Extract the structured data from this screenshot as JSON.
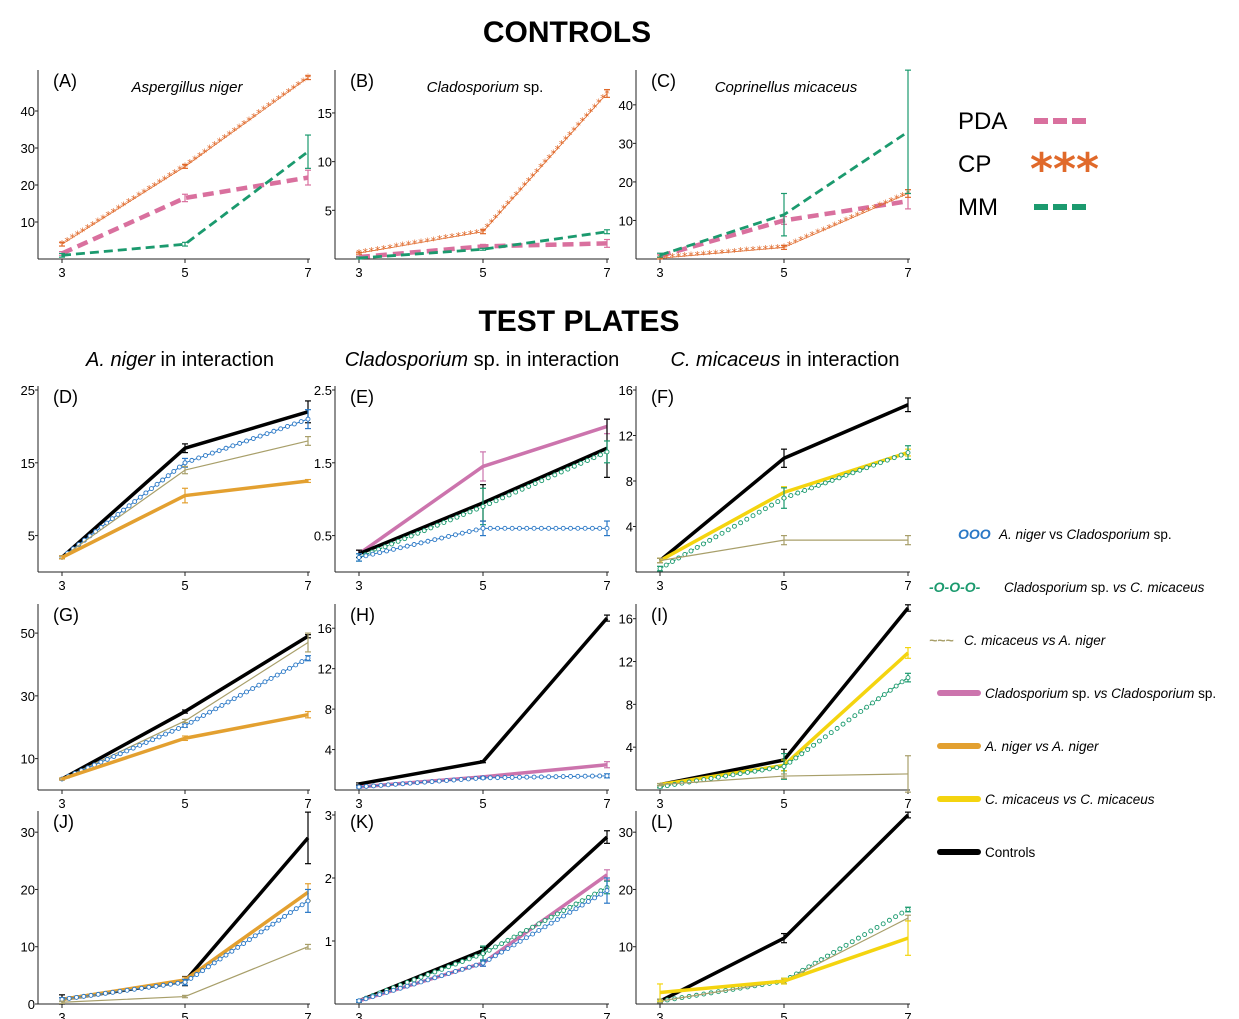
{
  "headings": {
    "controls": "CONTROLS",
    "test_plates": "TEST PLATES"
  },
  "column_heads": [
    {
      "italic": "A. niger",
      "rest": " in interaction"
    },
    {
      "italic": "Cladosporium",
      "rest": " sp. in interaction"
    },
    {
      "italic": "C. micaceus",
      "rest": " in interaction"
    }
  ],
  "legend_controls": [
    {
      "label": "PDA",
      "color": "#d9709e",
      "style": "dashed",
      "swatch": "pda-dash-icon"
    },
    {
      "label": "CP",
      "color": "#e0692a",
      "style": "asterisks",
      "swatch": "asterisk-icon"
    },
    {
      "label": "MM",
      "color": "#1b9a6e",
      "style": "dashed",
      "swatch": "mm-dash-icon"
    }
  ],
  "legend_tests": [
    {
      "key": "nc",
      "parts": [
        {
          "t": "A. niger",
          "i": true
        },
        {
          "t": " vs ",
          "i": false
        },
        {
          "t": "Cladosporium",
          "i": true
        },
        {
          "t": " sp.",
          "i": false
        }
      ],
      "color": "#2a78c6",
      "style": "circles",
      "swatch_text": "OOO",
      "swatch": "blue-circles-icon"
    },
    {
      "key": "cm",
      "parts": [
        {
          "t": "Cladosporium",
          "i": true
        },
        {
          "t": " sp. ",
          "i": false
        },
        {
          "t": "vs C. micaceus",
          "i": true
        }
      ],
      "color": "#1b9a6e",
      "style": "dash-circles",
      "swatch_text": "-O-O-O-",
      "swatch": "green-dash-circle-icon"
    },
    {
      "key": "ma",
      "parts": [
        {
          "t": "C. micaceus vs A. niger",
          "i": true
        }
      ],
      "color": "#a89f6a",
      "style": "waves",
      "swatch_text": "~~~",
      "swatch": "olive-wave-icon"
    },
    {
      "key": "cc",
      "parts": [
        {
          "t": "Cladosporium",
          "i": true
        },
        {
          "t": " sp. ",
          "i": false
        },
        {
          "t": "vs Cladosporium",
          "i": true
        },
        {
          "t": " sp.",
          "i": false
        }
      ],
      "color": "#cc74ad",
      "style": "solid",
      "swatch": "pink-line-icon"
    },
    {
      "key": "nn",
      "parts": [
        {
          "t": "A. niger vs A. niger",
          "i": true
        }
      ],
      "color": "#e3a030",
      "style": "solid",
      "swatch": "orange-line-icon"
    },
    {
      "key": "mm2",
      "parts": [
        {
          "t": "C. micaceus vs C. micaceus",
          "i": true
        }
      ],
      "color": "#f4d40f",
      "style": "solid",
      "swatch": "yellow-line-icon"
    },
    {
      "key": "ctl",
      "parts": [
        {
          "t": "Controls",
          "i": false
        }
      ],
      "color": "#000000",
      "style": "solid",
      "swatch": "black-line-icon"
    }
  ],
  "chart_data": [
    {
      "label": "(A)",
      "title": "Aspergillus niger",
      "type": "line",
      "x": [
        3,
        5,
        7
      ],
      "ylim": [
        0,
        50
      ],
      "yticks": [
        10,
        20,
        30,
        40
      ],
      "series": [
        {
          "name": "PDA",
          "values": [
            1.5,
            16.5,
            22
          ],
          "err": [
            0.5,
            1,
            2
          ]
        },
        {
          "name": "CP",
          "values": [
            4,
            25,
            49
          ],
          "err": [
            0.5,
            0.5,
            0.5
          ]
        },
        {
          "name": "MM",
          "values": [
            1,
            4,
            29
          ],
          "err": [
            0.5,
            0.5,
            4.5
          ]
        }
      ]
    },
    {
      "label": "(B)",
      "title": "Cladosporium sp.",
      "title_parts": [
        {
          "t": "Cladosporium",
          "i": true
        },
        {
          "t": " sp.",
          "i": false
        }
      ],
      "type": "line",
      "x": [
        3,
        5,
        7
      ],
      "ylim": [
        0,
        19
      ],
      "yticks": [
        5,
        10,
        15
      ],
      "series": [
        {
          "name": "PDA",
          "values": [
            0.2,
            1.3,
            1.6
          ],
          "err": [
            0.1,
            0.2,
            0.4
          ]
        },
        {
          "name": "CP",
          "values": [
            0.6,
            2.8,
            17
          ],
          "err": [
            0.1,
            0.2,
            0.4
          ]
        },
        {
          "name": "MM",
          "values": [
            0.1,
            1.0,
            2.8
          ],
          "err": [
            0.1,
            0.1,
            0.2
          ]
        }
      ]
    },
    {
      "label": "(C)",
      "title": "Coprinellus micaceus",
      "type": "line",
      "x": [
        3,
        5,
        7
      ],
      "ylim": [
        0,
        48
      ],
      "yticks": [
        10,
        20,
        30,
        40
      ],
      "series": [
        {
          "name": "PDA",
          "values": [
            0.8,
            10,
            15
          ],
          "err": [
            0.3,
            1,
            2
          ]
        },
        {
          "name": "CP",
          "values": [
            0.2,
            3,
            17
          ],
          "err": [
            0.2,
            0.5,
            1
          ]
        },
        {
          "name": "MM",
          "values": [
            1,
            11.5,
            33
          ],
          "err": [
            0.5,
            5.5,
            16
          ]
        }
      ]
    },
    {
      "label": "(D)",
      "type": "line",
      "x": [
        3,
        5,
        7
      ],
      "ylim": [
        0,
        25
      ],
      "yticks": [
        5,
        15,
        25
      ],
      "series": [
        {
          "name": "Controls",
          "values": [
            2,
            17,
            22
          ],
          "err": [
            0.2,
            0.6,
            1.5
          ]
        },
        {
          "name": "A. niger vs Cladosporium sp.",
          "values": [
            2,
            15,
            21
          ],
          "err": [
            0.2,
            0.6,
            1.3
          ]
        },
        {
          "name": "C. micaceus vs A. niger",
          "values": [
            2,
            14,
            18
          ],
          "err": [
            0.2,
            0.5,
            0.6
          ]
        },
        {
          "name": "A. niger vs A. niger",
          "values": [
            2,
            10.5,
            12.5
          ],
          "err": [
            0.2,
            1,
            0.2
          ]
        }
      ]
    },
    {
      "label": "(E)",
      "type": "line",
      "x": [
        3,
        5,
        7
      ],
      "ylim": [
        0,
        2.5
      ],
      "yticks": [
        0.5,
        1.5,
        2.5
      ],
      "series": [
        {
          "name": "Cladosporium sp. vs Cladosporium sp.",
          "values": [
            0.25,
            1.45,
            2.0
          ],
          "err": [
            0.05,
            0.2,
            0.1
          ]
        },
        {
          "name": "Controls",
          "values": [
            0.25,
            0.95,
            1.7
          ],
          "err": [
            0.05,
            0.25,
            0.4
          ]
        },
        {
          "name": "Cladosporium sp. vs C. micaceus",
          "values": [
            0.2,
            0.9,
            1.65
          ],
          "err": [
            0.05,
            0.25,
            0.15
          ]
        },
        {
          "name": "A. niger vs Cladosporium sp.",
          "values": [
            0.2,
            0.6,
            0.6
          ],
          "err": [
            0.05,
            0.1,
            0.1
          ]
        }
      ]
    },
    {
      "label": "(F)",
      "type": "line",
      "x": [
        3,
        5,
        7
      ],
      "ylim": [
        0,
        16
      ],
      "yticks": [
        4,
        8,
        12,
        16
      ],
      "series": [
        {
          "name": "Controls",
          "values": [
            1,
            10,
            14.7
          ],
          "err": [
            0.2,
            0.8,
            0.6
          ]
        },
        {
          "name": "C. micaceus vs C. micaceus",
          "values": [
            1,
            7,
            10.5
          ],
          "err": [
            0.2,
            0.5,
            0.3
          ]
        },
        {
          "name": "Cladosporium sp. vs C. micaceus",
          "values": [
            0.3,
            6.5,
            10.5
          ],
          "err": [
            0.2,
            0.9,
            0.6
          ]
        },
        {
          "name": "C. micaceus vs A. niger",
          "values": [
            1,
            2.8,
            2.8
          ],
          "err": [
            0.2,
            0.4,
            0.4
          ]
        }
      ]
    },
    {
      "label": "(G)",
      "type": "line",
      "x": [
        3,
        5,
        7
      ],
      "ylim": [
        0,
        58
      ],
      "yticks": [
        10,
        30,
        50
      ],
      "series": [
        {
          "name": "Controls",
          "values": [
            3.5,
            25,
            49
          ],
          "err": [
            0.3,
            0.5,
            0.5
          ]
        },
        {
          "name": "C. micaceus vs A. niger",
          "values": [
            3.5,
            22,
            47
          ],
          "err": [
            0.3,
            0.5,
            3
          ]
        },
        {
          "name": "A. niger vs Cladosporium sp.",
          "values": [
            3.5,
            20.5,
            42
          ],
          "err": [
            0.3,
            0.5,
            0.8
          ]
        },
        {
          "name": "A. niger vs A. niger",
          "values": [
            3.5,
            16.5,
            24
          ],
          "err": [
            0.3,
            0.7,
            1
          ]
        }
      ]
    },
    {
      "label": "(H)",
      "type": "line",
      "x": [
        3,
        5,
        7
      ],
      "ylim": [
        0,
        18
      ],
      "yticks": [
        4,
        8,
        12,
        16
      ],
      "series": [
        {
          "name": "Controls",
          "values": [
            0.6,
            2.8,
            17
          ],
          "err": [
            0.1,
            0.1,
            0.3
          ]
        },
        {
          "name": "Cladosporium sp. vs Cladosporium sp.",
          "values": [
            0.3,
            1.3,
            2.5
          ],
          "err": [
            0.1,
            0.1,
            0.3
          ]
        },
        {
          "name": "A. niger vs Cladosporium sp.",
          "values": [
            0.3,
            1.2,
            1.4
          ],
          "err": [
            0.1,
            0.1,
            0.2
          ]
        }
      ]
    },
    {
      "label": "(I)",
      "type": "line",
      "x": [
        3,
        5,
        7
      ],
      "ylim": [
        0,
        17
      ],
      "yticks": [
        4,
        8,
        12,
        16
      ],
      "series": [
        {
          "name": "Controls",
          "values": [
            0.5,
            2.8,
            17
          ],
          "err": [
            0.1,
            1,
            0.3
          ]
        },
        {
          "name": "C. micaceus vs C. micaceus",
          "values": [
            0.5,
            2.3,
            12.8
          ],
          "err": [
            0.1,
            0.5,
            0.5
          ]
        },
        {
          "name": "Cladosporium sp. vs C. micaceus",
          "values": [
            0.3,
            2.2,
            10.5
          ],
          "err": [
            0.1,
            1.2,
            0.4
          ]
        },
        {
          "name": "C. micaceus vs A. niger",
          "values": [
            0.5,
            1.3,
            1.5
          ],
          "err": [
            0.1,
            0.2,
            1.7
          ]
        }
      ]
    },
    {
      "label": "(J)",
      "type": "line",
      "x": [
        3,
        5,
        7
      ],
      "ylim": [
        0,
        33
      ],
      "yticks": [
        0,
        10,
        20,
        30
      ],
      "series": [
        {
          "name": "Controls",
          "values": [
            0.8,
            4,
            29
          ],
          "err": [
            0.8,
            0.8,
            4.5
          ]
        },
        {
          "name": "A. niger vs A. niger",
          "values": [
            0.8,
            4.2,
            19.5
          ],
          "err": [
            0.3,
            0.5,
            1.5
          ]
        },
        {
          "name": "A. niger vs Cladosporium sp.",
          "values": [
            0.8,
            3.8,
            18
          ],
          "err": [
            0.3,
            0.5,
            2
          ]
        },
        {
          "name": "C. micaceus vs A. niger",
          "values": [
            0.3,
            1.3,
            10
          ],
          "err": [
            0.2,
            0.2,
            0.4
          ]
        }
      ]
    },
    {
      "label": "(K)",
      "type": "line",
      "x": [
        3,
        5,
        7
      ],
      "ylim": [
        0,
        3
      ],
      "yticks": [
        1,
        2,
        3
      ],
      "series": [
        {
          "name": "Controls",
          "values": [
            0.05,
            0.85,
            2.65
          ],
          "err": [
            0.02,
            0.05,
            0.1
          ]
        },
        {
          "name": "Cladosporium sp. vs Cladosporium sp.",
          "values": [
            0.05,
            0.65,
            2.05
          ],
          "err": [
            0.02,
            0.05,
            0.08
          ]
        },
        {
          "name": "Cladosporium sp. vs C. micaceus",
          "values": [
            0.05,
            0.8,
            1.85
          ],
          "err": [
            0.02,
            0.12,
            0.1
          ]
        },
        {
          "name": "A. niger vs Cladosporium sp.",
          "values": [
            0.05,
            0.65,
            1.8
          ],
          "err": [
            0.02,
            0.05,
            0.2
          ]
        }
      ]
    },
    {
      "label": "(L)",
      "type": "line",
      "x": [
        3,
        5,
        7
      ],
      "ylim": [
        0,
        33
      ],
      "yticks": [
        10,
        20,
        30
      ],
      "series": [
        {
          "name": "Controls",
          "values": [
            0.5,
            11.5,
            33
          ],
          "err": [
            0.3,
            0.8,
            0.5
          ]
        },
        {
          "name": "Cladosporium sp. vs C. micaceus",
          "values": [
            0.5,
            4,
            16.5
          ],
          "err": [
            0.3,
            0.5,
            0.4
          ]
        },
        {
          "name": "C. micaceus vs A. niger",
          "values": [
            0.5,
            4,
            15
          ],
          "err": [
            0.3,
            0.4,
            0.5
          ]
        },
        {
          "name": "C. micaceus vs C. micaceus",
          "values": [
            2,
            4,
            11.5
          ],
          "err": [
            1.5,
            0.5,
            3
          ]
        }
      ]
    }
  ]
}
